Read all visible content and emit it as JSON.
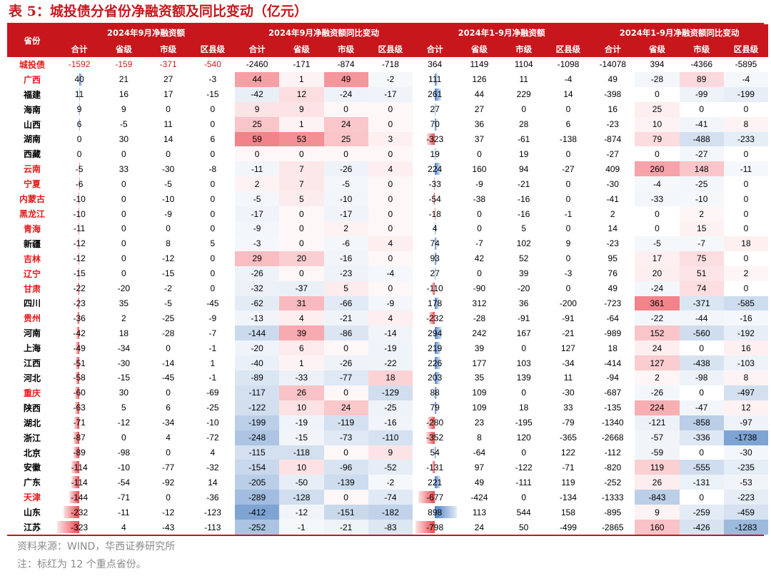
{
  "title": "表 5：城投债分省份净融资额及同比变动（亿元）",
  "header": {
    "province_label": "省份",
    "groups": [
      "2024年9月净融资额",
      "2024年9月净融资额同比变动",
      "2024年1-9月净融资额",
      "2024年1-9月净融资额同比变动"
    ],
    "sub": [
      "合计",
      "省级",
      "市级",
      "区县级"
    ]
  },
  "colors": {
    "accent": "#c8161d",
    "key_province": "#e31a1c",
    "pos_heat": "#f0646e",
    "neg_heat": "#5a8ac6",
    "bar_neg": "#e8494f",
    "bar_pos": "#4f81c7"
  },
  "total_row": {
    "name": "城投债",
    "values": [
      -1592,
      -159,
      -371,
      -540,
      -2460,
      -171,
      -874,
      -718,
      364,
      1149,
      1104,
      -1098,
      -14078,
      394,
      -4366,
      -5895
    ]
  },
  "rows": [
    {
      "name": "广西",
      "key": true,
      "values": [
        40,
        21,
        27,
        -3,
        44,
        1,
        49,
        -2,
        111,
        126,
        11,
        -4,
        49,
        -28,
        89,
        -4
      ]
    },
    {
      "name": "福建",
      "key": false,
      "values": [
        11,
        16,
        17,
        -15,
        -42,
        12,
        -24,
        -17,
        261,
        44,
        229,
        14,
        -398,
        0,
        -99,
        -199
      ]
    },
    {
      "name": "海南",
      "key": false,
      "values": [
        9,
        9,
        0,
        0,
        9,
        9,
        0,
        0,
        27,
        27,
        0,
        0,
        16,
        25,
        0,
        0
      ]
    },
    {
      "name": "山西",
      "key": false,
      "values": [
        6,
        -5,
        11,
        0,
        25,
        1,
        24,
        0,
        70,
        36,
        28,
        6,
        -23,
        10,
        -41,
        8
      ]
    },
    {
      "name": "湖南",
      "key": false,
      "values": [
        0,
        30,
        14,
        6,
        59,
        53,
        25,
        3,
        -323,
        37,
        -61,
        -138,
        -874,
        79,
        -488,
        -233
      ]
    },
    {
      "name": "西藏",
      "key": false,
      "values": [
        0,
        0,
        0,
        0,
        0,
        0,
        0,
        0,
        19,
        0,
        19,
        0,
        -27,
        0,
        -27,
        0
      ]
    },
    {
      "name": "云南",
      "key": true,
      "values": [
        -5,
        33,
        -30,
        -8,
        -11,
        7,
        -26,
        4,
        224,
        160,
        94,
        -27,
        409,
        260,
        148,
        -11
      ]
    },
    {
      "name": "宁夏",
      "key": true,
      "values": [
        -6,
        0,
        -5,
        0,
        2,
        7,
        -5,
        0,
        -33,
        -9,
        -21,
        0,
        -30,
        -4,
        -25,
        0
      ]
    },
    {
      "name": "内蒙古",
      "key": true,
      "values": [
        -10,
        0,
        -10,
        0,
        -5,
        5,
        -10,
        0,
        -54,
        -38,
        -16,
        0,
        -41,
        -33,
        -10,
        0
      ]
    },
    {
      "name": "黑龙江",
      "key": true,
      "values": [
        -10,
        0,
        -9,
        0,
        -17,
        0,
        -17,
        0,
        -18,
        0,
        -16,
        -1,
        2,
        0,
        2,
        0
      ]
    },
    {
      "name": "青海",
      "key": true,
      "values": [
        -11,
        0,
        0,
        0,
        -9,
        0,
        2,
        0,
        4,
        0,
        5,
        0,
        14,
        0,
        15,
        0
      ]
    },
    {
      "name": "新疆",
      "key": false,
      "values": [
        -12,
        0,
        8,
        5,
        -3,
        0,
        -6,
        4,
        74,
        -7,
        102,
        9,
        -23,
        -5,
        -7,
        18
      ]
    },
    {
      "name": "吉林",
      "key": true,
      "values": [
        -12,
        0,
        -12,
        0,
        29,
        20,
        -16,
        0,
        93,
        42,
        52,
        0,
        95,
        17,
        75,
        0
      ]
    },
    {
      "name": "辽宁",
      "key": true,
      "values": [
        -15,
        0,
        -15,
        0,
        -26,
        0,
        -23,
        -4,
        27,
        0,
        39,
        -3,
        76,
        20,
        51,
        2
      ]
    },
    {
      "name": "甘肃",
      "key": true,
      "values": [
        -22,
        -20,
        -2,
        0,
        -32,
        -37,
        5,
        0,
        -110,
        -90,
        -20,
        0,
        49,
        -24,
        74,
        0
      ]
    },
    {
      "name": "四川",
      "key": false,
      "values": [
        -23,
        35,
        -5,
        -45,
        -62,
        31,
        -66,
        -9,
        178,
        312,
        36,
        -200,
        -723,
        361,
        -371,
        -585
      ]
    },
    {
      "name": "贵州",
      "key": true,
      "values": [
        -36,
        2,
        -25,
        -9,
        -13,
        4,
        -21,
        4,
        -232,
        -28,
        -91,
        -91,
        -64,
        -22,
        -44,
        -16
      ]
    },
    {
      "name": "河南",
      "key": false,
      "values": [
        -42,
        18,
        -28,
        -7,
        -144,
        39,
        -86,
        -14,
        294,
        242,
        167,
        -21,
        -989,
        152,
        -560,
        -192
      ]
    },
    {
      "name": "上海",
      "key": false,
      "values": [
        -49,
        -34,
        0,
        -1,
        -20,
        6,
        0,
        -19,
        219,
        39,
        0,
        127,
        18,
        24,
        0,
        16
      ]
    },
    {
      "name": "江西",
      "key": false,
      "values": [
        -51,
        -30,
        -14,
        1,
        -40,
        1,
        -26,
        -22,
        226,
        177,
        103,
        -34,
        -414,
        127,
        -438,
        -103
      ]
    },
    {
      "name": "河北",
      "key": false,
      "values": [
        -58,
        -15,
        -45,
        -1,
        -89,
        -33,
        -77,
        18,
        203,
        35,
        139,
        11,
        -94,
        2,
        -98,
        8
      ]
    },
    {
      "name": "重庆",
      "key": true,
      "values": [
        -60,
        30,
        0,
        -69,
        -117,
        26,
        0,
        -129,
        88,
        109,
        0,
        -30,
        -687,
        -26,
        0,
        -497
      ]
    },
    {
      "name": "陕西",
      "key": false,
      "values": [
        -63,
        5,
        6,
        -25,
        -122,
        10,
        24,
        -25,
        79,
        109,
        18,
        33,
        -135,
        224,
        -47,
        12
      ]
    },
    {
      "name": "湖北",
      "key": false,
      "values": [
        -71,
        -12,
        -34,
        -10,
        -199,
        -19,
        -119,
        -16,
        -280,
        23,
        -195,
        -79,
        -1340,
        -121,
        -858,
        -97
      ]
    },
    {
      "name": "浙江",
      "key": false,
      "values": [
        -87,
        0,
        4,
        -72,
        -248,
        -15,
        -73,
        -110,
        -352,
        8,
        120,
        -365,
        -2668,
        -57,
        -336,
        -1738
      ]
    },
    {
      "name": "北京",
      "key": false,
      "values": [
        -89,
        -98,
        0,
        4,
        -115,
        -118,
        0,
        9,
        54,
        -64,
        0,
        122,
        -112,
        -59,
        0,
        -30
      ]
    },
    {
      "name": "安徽",
      "key": false,
      "values": [
        -114,
        -10,
        -77,
        -32,
        -154,
        10,
        -96,
        -52,
        -131,
        97,
        -122,
        -71,
        -820,
        119,
        -555,
        -235
      ]
    },
    {
      "name": "广东",
      "key": false,
      "values": [
        -114,
        -54,
        -92,
        14,
        -205,
        -50,
        -139,
        -2,
        221,
        49,
        -111,
        119,
        -252,
        26,
        -131,
        -53
      ]
    },
    {
      "name": "天津",
      "key": true,
      "values": [
        -144,
        -71,
        0,
        -36,
        -289,
        -128,
        0,
        -74,
        -677,
        -424,
        0,
        -134,
        -1333,
        -843,
        0,
        -223
      ]
    },
    {
      "name": "山东",
      "key": false,
      "values": [
        -232,
        -11,
        -12,
        -123,
        -412,
        -12,
        -151,
        -182,
        898,
        113,
        544,
        158,
        -895,
        9,
        -259,
        -459
      ]
    },
    {
      "name": "江苏",
      "key": false,
      "values": [
        -323,
        4,
        -43,
        -113,
        -252,
        -1,
        -21,
        -83,
        -798,
        24,
        50,
        -499,
        -2865,
        160,
        -426,
        -1283
      ]
    }
  ],
  "footer": {
    "source": "资料来源：WIND，华西证券研究所",
    "note": "注：标红为 12 个重点省份。"
  }
}
